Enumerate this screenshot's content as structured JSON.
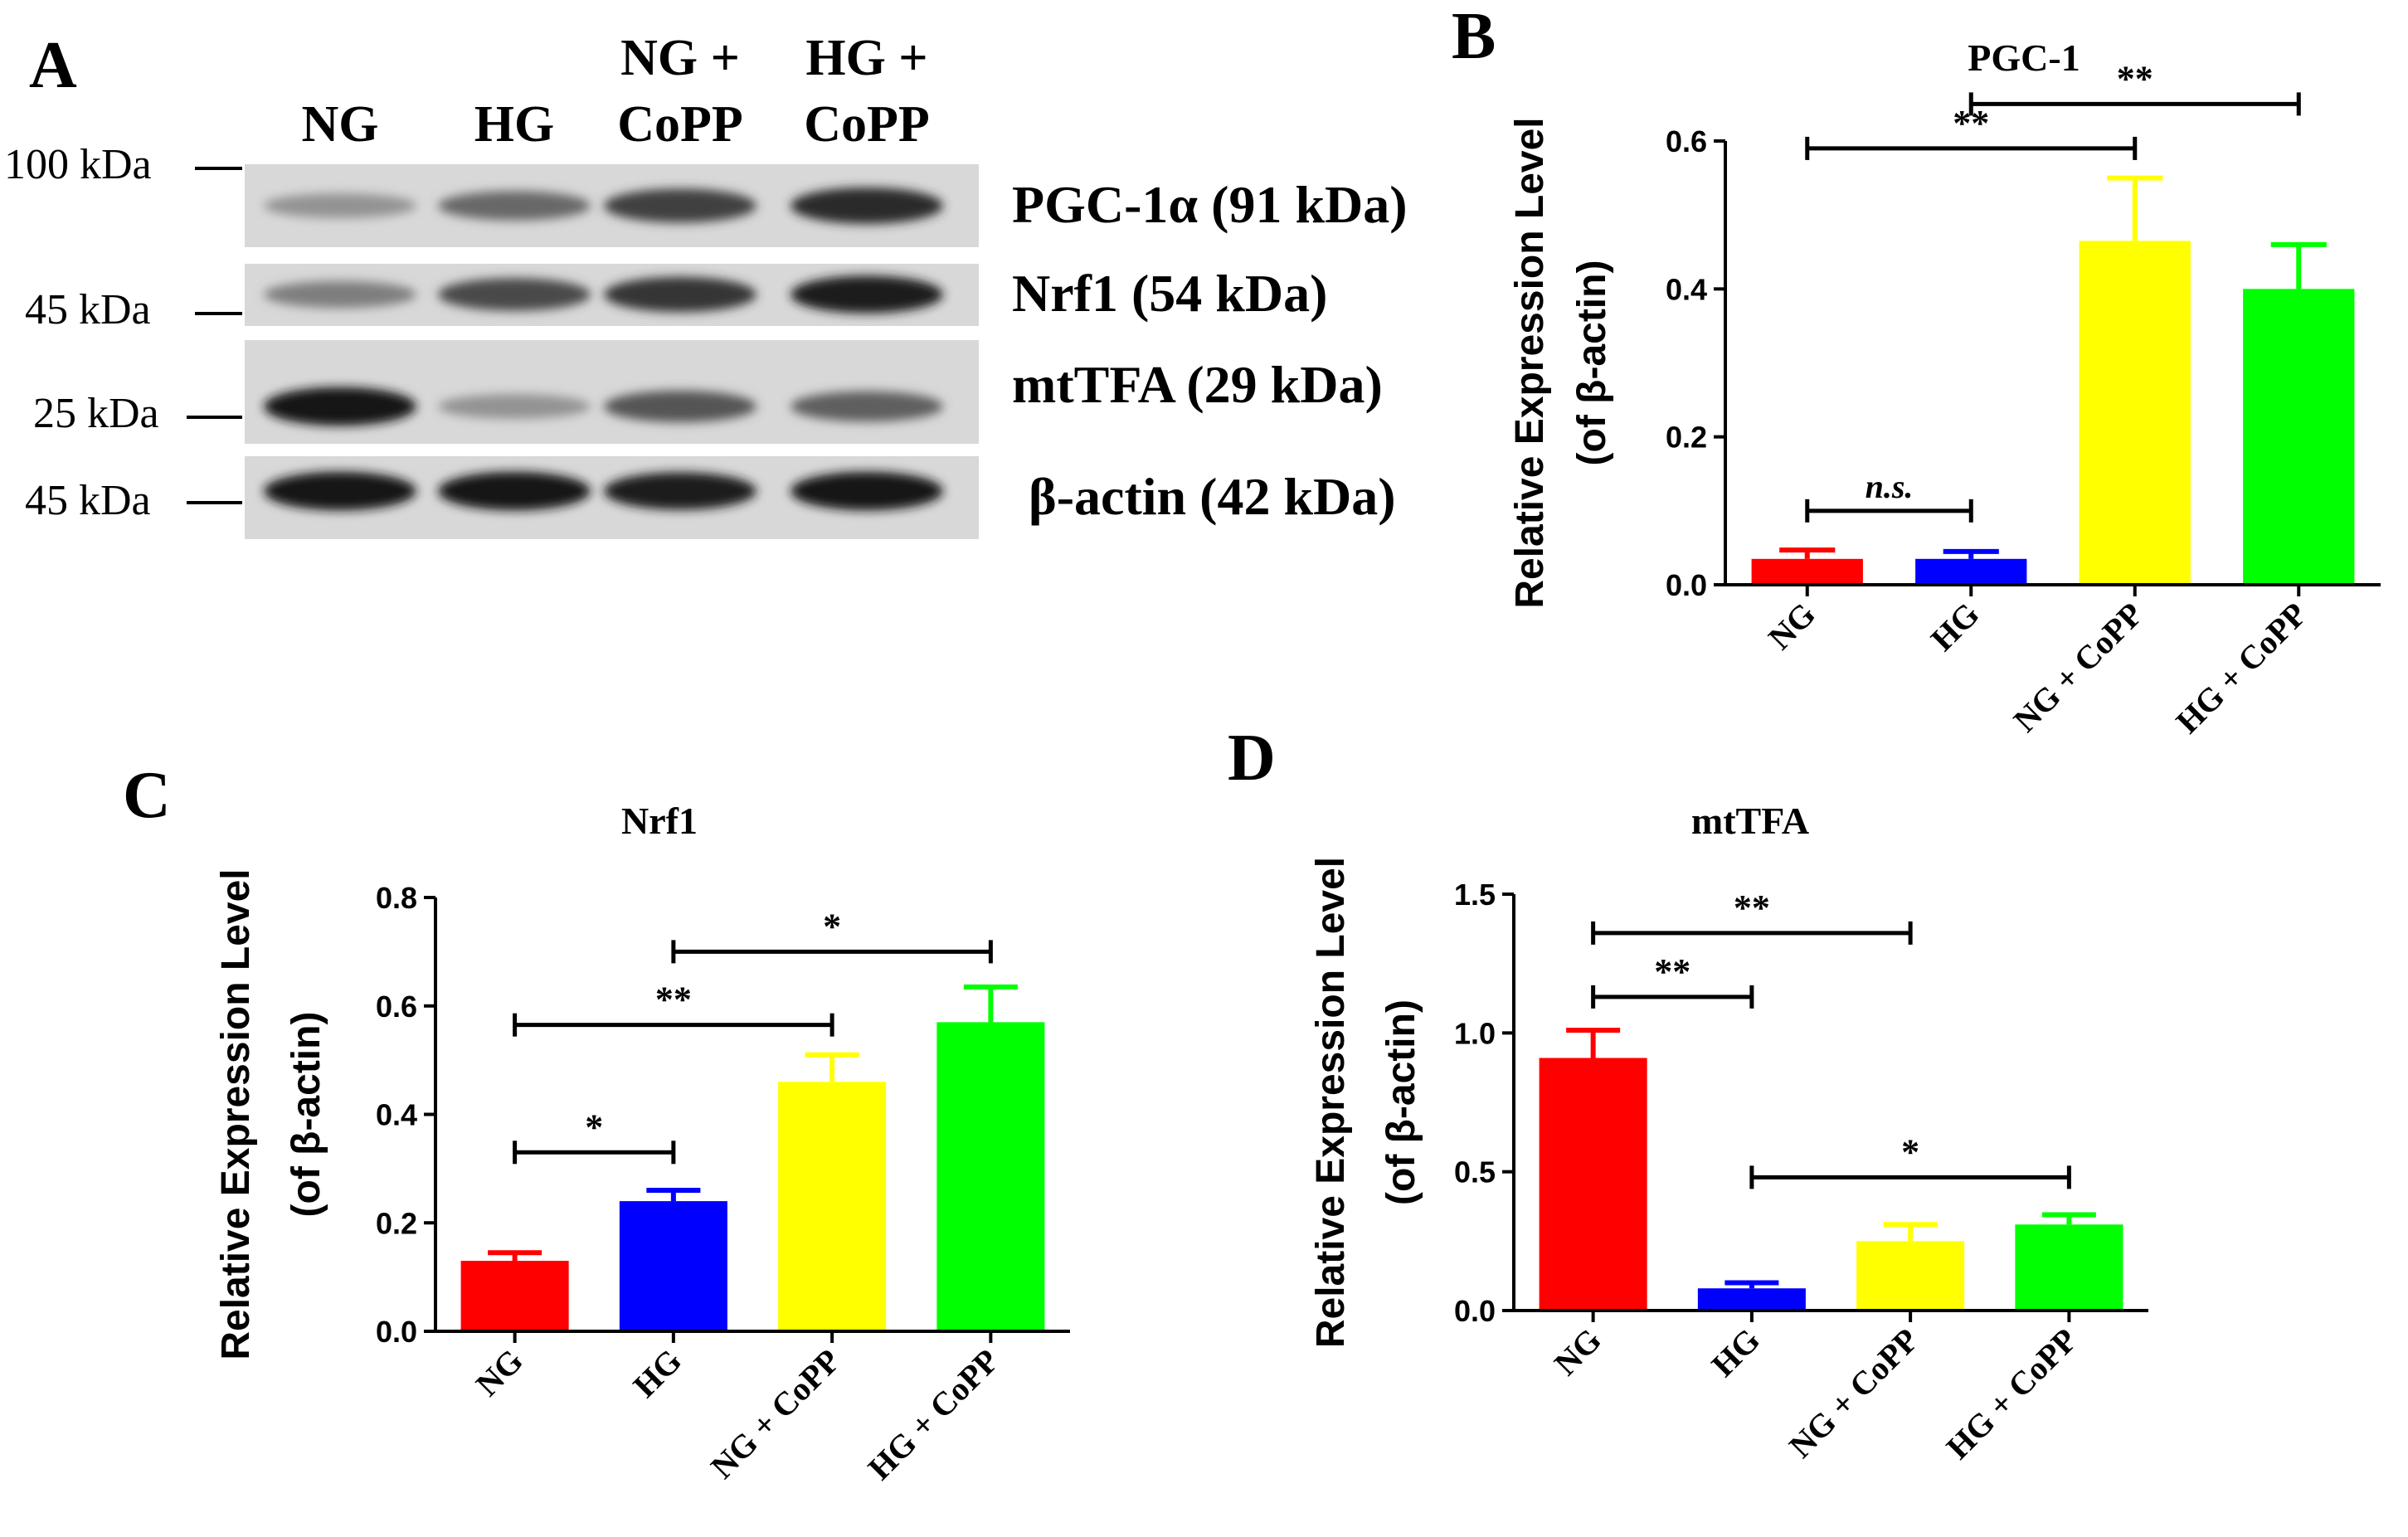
{
  "panel_a": {
    "letter": "A",
    "lanes": [
      {
        "lines": [
          "NG"
        ]
      },
      {
        "lines": [
          "HG"
        ]
      },
      {
        "lines": [
          "NG +",
          "CoPP"
        ]
      },
      {
        "lines": [
          "HG +",
          "CoPP"
        ]
      }
    ],
    "markers": [
      "100 kDa",
      "45 kDa",
      "25 kDa",
      "45 kDa"
    ],
    "blots": [
      {
        "label": "PGC-1α (91 kDa)",
        "intensity": [
          0.35,
          0.55,
          0.75,
          0.85
        ]
      },
      {
        "label": "Nrf1 (54 kDa)",
        "intensity": [
          0.45,
          0.7,
          0.8,
          0.9
        ]
      },
      {
        "label": "mtTFA (29 kDa)",
        "intensity": [
          0.95,
          0.35,
          0.65,
          0.6
        ]
      },
      {
        "label": "β-actin (42 kDa)",
        "intensity": [
          0.95,
          0.95,
          0.9,
          0.95
        ]
      }
    ]
  },
  "colors": {
    "NG": "#ff0000",
    "HG": "#0000ff",
    "NG + CoPP": "#ffff00",
    "HG + CoPP": "#00ff00"
  },
  "chart_data": [
    {
      "panel": "B",
      "type": "bar",
      "title": "PGC-1",
      "ylabel": [
        "Relative Expression Level",
        "(of β-actin)"
      ],
      "categories": [
        "NG",
        "HG",
        "NG + CoPP",
        "HG + CoPP"
      ],
      "values": [
        0.035,
        0.035,
        0.465,
        0.4
      ],
      "errors": [
        0.012,
        0.01,
        0.085,
        0.06
      ],
      "ylim": [
        0,
        0.6
      ],
      "ticks": [
        0.0,
        0.2,
        0.4,
        0.6
      ],
      "tick_labels": [
        "0.0",
        "0.2",
        "0.4",
        "0.6"
      ],
      "significance": [
        {
          "from": 0,
          "to": 1,
          "y": 0.1,
          "label": "n.s."
        },
        {
          "from": 0,
          "to": 2,
          "y": 0.59,
          "label": "**"
        },
        {
          "from": 1,
          "to": 3,
          "y": 0.65,
          "label": "**"
        }
      ]
    },
    {
      "panel": "C",
      "type": "bar",
      "title": "Nrf1",
      "ylabel": [
        "Relative Expression Level",
        "(of β-actin)"
      ],
      "categories": [
        "NG",
        "HG",
        "NG + CoPP",
        "HG + CoPP"
      ],
      "values": [
        0.13,
        0.24,
        0.46,
        0.57
      ],
      "errors": [
        0.015,
        0.02,
        0.05,
        0.065
      ],
      "ylim": [
        0,
        0.8
      ],
      "ticks": [
        0.0,
        0.2,
        0.4,
        0.6,
        0.8
      ],
      "tick_labels": [
        "0.0",
        "0.2",
        "0.4",
        "0.6",
        "0.8"
      ],
      "significance": [
        {
          "from": 0,
          "to": 1,
          "y": 0.33,
          "label": "*"
        },
        {
          "from": 0,
          "to": 2,
          "y": 0.565,
          "label": "**"
        },
        {
          "from": 1,
          "to": 3,
          "y": 0.7,
          "label": "*"
        }
      ]
    },
    {
      "panel": "D",
      "type": "bar",
      "title": "mtTFA",
      "ylabel": [
        "Relative Expression Level",
        "(of β-actin)"
      ],
      "categories": [
        "NG",
        "HG",
        "NG + CoPP",
        "HG + CoPP"
      ],
      "values": [
        0.91,
        0.08,
        0.25,
        0.31
      ],
      "errors": [
        0.1,
        0.02,
        0.06,
        0.035
      ],
      "ylim": [
        0,
        1.5
      ],
      "ticks": [
        0.0,
        0.5,
        1.0,
        1.5
      ],
      "tick_labels": [
        "0.0",
        "0.5",
        "1.0",
        "1.5"
      ],
      "significance": [
        {
          "from": 0,
          "to": 1,
          "y": 1.13,
          "label": "**"
        },
        {
          "from": 0,
          "to": 2,
          "y": 1.36,
          "label": "**"
        },
        {
          "from": 1,
          "to": 3,
          "y": 0.48,
          "label": "*"
        }
      ]
    }
  ]
}
